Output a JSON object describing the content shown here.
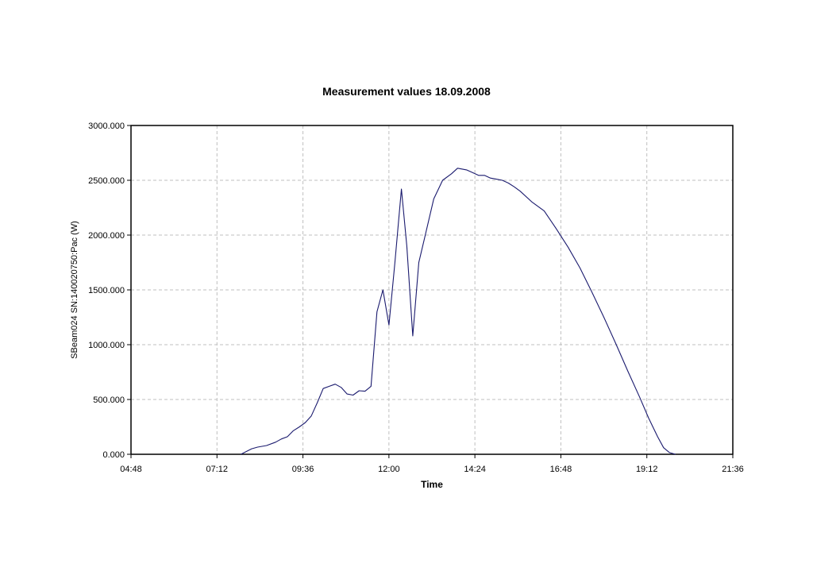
{
  "chart_data": {
    "type": "line",
    "title": "Measurement values 18.09.2008",
    "xlabel": "Time",
    "ylabel": "SBeam024 SN:140020750:Pac (W)",
    "xlim": [
      "04:48",
      "21:36"
    ],
    "ylim": [
      0,
      3000
    ],
    "grid": true,
    "legend": "none",
    "x_tick_labels": [
      "04:48",
      "07:12",
      "09:36",
      "12:00",
      "14:24",
      "16:48",
      "19:12",
      "21:36"
    ],
    "y_tick_labels": [
      "0.000",
      "500.000",
      "1000.000",
      "1500.000",
      "2000.000",
      "2500.000",
      "3000.000"
    ],
    "series": [
      {
        "color": "#1a1a6e",
        "points": [
          [
            "07:52",
            0
          ],
          [
            "08:10",
            50
          ],
          [
            "08:20",
            65
          ],
          [
            "08:35",
            80
          ],
          [
            "08:50",
            110
          ],
          [
            "09:00",
            140
          ],
          [
            "09:10",
            160
          ],
          [
            "09:20",
            215
          ],
          [
            "09:30",
            250
          ],
          [
            "09:40",
            290
          ],
          [
            "09:50",
            350
          ],
          [
            "10:00",
            470
          ],
          [
            "10:10",
            600
          ],
          [
            "10:20",
            620
          ],
          [
            "10:30",
            640
          ],
          [
            "10:40",
            610
          ],
          [
            "10:50",
            550
          ],
          [
            "11:00",
            540
          ],
          [
            "11:10",
            580
          ],
          [
            "11:20",
            575
          ],
          [
            "11:30",
            620
          ],
          [
            "11:40",
            1300
          ],
          [
            "11:50",
            1500
          ],
          [
            "12:00",
            1180
          ],
          [
            "12:10",
            1750
          ],
          [
            "12:21",
            2420
          ],
          [
            "12:30",
            1900
          ],
          [
            "12:40",
            1080
          ],
          [
            "12:50",
            1750
          ],
          [
            "13:00",
            1980
          ],
          [
            "13:15",
            2330
          ],
          [
            "13:30",
            2500
          ],
          [
            "13:45",
            2560
          ],
          [
            "13:55",
            2610
          ],
          [
            "14:10",
            2595
          ],
          [
            "14:20",
            2570
          ],
          [
            "14:30",
            2545
          ],
          [
            "14:40",
            2545
          ],
          [
            "14:50",
            2520
          ],
          [
            "15:00",
            2510
          ],
          [
            "15:10",
            2500
          ],
          [
            "15:20",
            2475
          ],
          [
            "15:30",
            2440
          ],
          [
            "15:40",
            2400
          ],
          [
            "16:00",
            2300
          ],
          [
            "16:20",
            2220
          ],
          [
            "16:40",
            2060
          ],
          [
            "17:00",
            1890
          ],
          [
            "17:20",
            1700
          ],
          [
            "17:40",
            1480
          ],
          [
            "18:00",
            1250
          ],
          [
            "18:20",
            1010
          ],
          [
            "18:40",
            760
          ],
          [
            "19:00",
            520
          ],
          [
            "19:15",
            330
          ],
          [
            "19:30",
            160
          ],
          [
            "19:40",
            60
          ],
          [
            "19:50",
            15
          ],
          [
            "20:00",
            0
          ]
        ]
      }
    ]
  }
}
